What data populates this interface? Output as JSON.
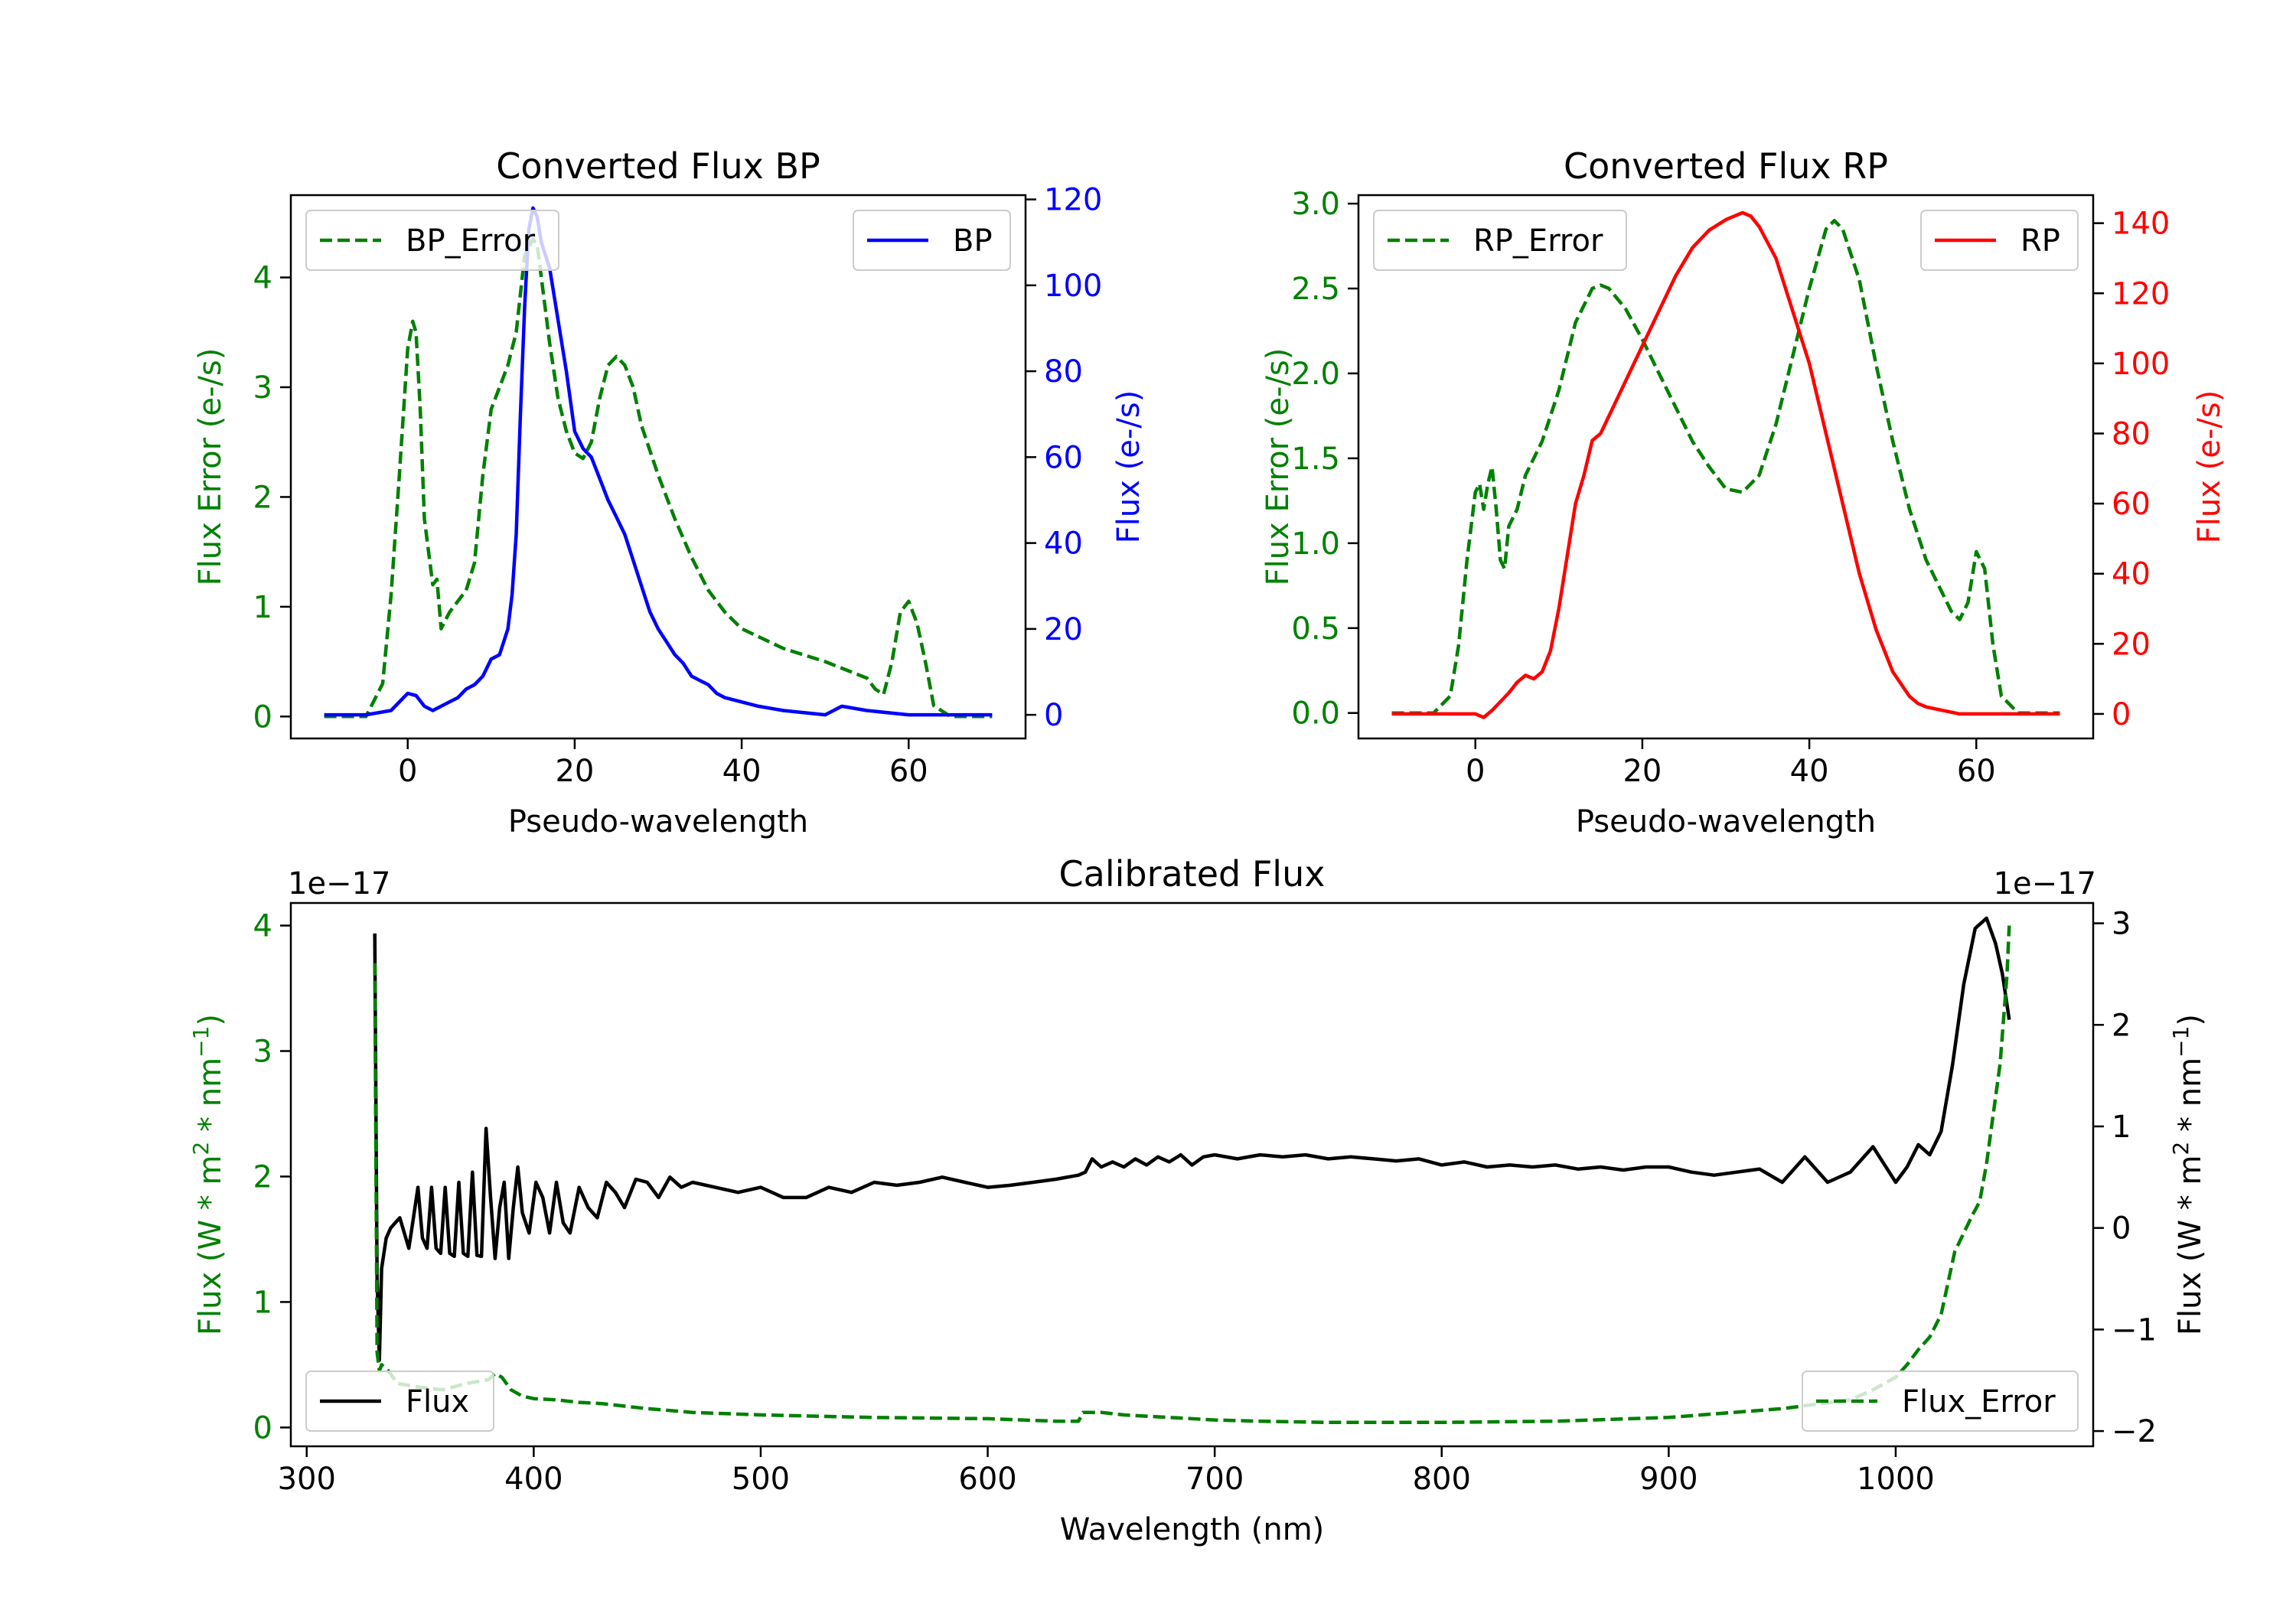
{
  "colors": {
    "green": "#008000",
    "blue": "#0000ff",
    "red": "#ff0000",
    "black": "#000000",
    "axis": "#000000",
    "legend_border": "#cccccc"
  },
  "chart_data": [
    {
      "type": "line",
      "title": "Converted Flux BP",
      "xlabel": "Pseudo-wavelength",
      "ylabel_left": "Flux Error (e-/s)",
      "ylabel_right": "Flux (e-/s)",
      "xlim": [
        -14,
        74
      ],
      "ylim_left": [
        -0.2,
        4.75
      ],
      "ylim_right": [
        -5.5,
        121
      ],
      "x_ticks": [
        0,
        20,
        40,
        60
      ],
      "x_tick_labels": [
        "0",
        "20",
        "40",
        "60"
      ],
      "y_left_ticks": [
        0,
        1,
        2,
        3,
        4
      ],
      "y_left_tick_labels": [
        "0",
        "1",
        "2",
        "3",
        "4"
      ],
      "y_right_ticks": [
        0,
        20,
        40,
        60,
        80,
        100,
        120
      ],
      "y_right_tick_labels": [
        "0",
        "20",
        "40",
        "60",
        "80",
        "100",
        "120"
      ],
      "legend_left": {
        "label": "BP_Error",
        "placement": "upper left"
      },
      "legend_right": {
        "label": "BP",
        "placement": "upper right"
      },
      "series": [
        {
          "name": "BP_Error",
          "axis": "left",
          "style": "dashed",
          "color": "green",
          "x": [
            -10,
            -5,
            -3,
            -2,
            -1,
            0,
            0.6,
            1,
            1.5,
            2,
            3,
            3.5,
            4,
            5,
            6,
            7,
            8,
            9,
            10,
            11,
            12,
            13,
            14,
            15,
            15.5,
            16,
            17,
            18,
            19,
            20,
            21,
            22,
            23,
            24,
            25,
            26,
            27,
            28,
            30,
            32,
            34,
            36,
            38,
            40,
            45,
            50,
            55,
            56,
            57,
            58,
            59,
            60,
            61,
            62,
            63,
            65,
            70
          ],
          "values": [
            0,
            0,
            0.3,
            1.1,
            2.2,
            3.35,
            3.6,
            3.5,
            2.8,
            1.8,
            1.2,
            1.25,
            0.8,
            0.95,
            1.05,
            1.15,
            1.4,
            2.2,
            2.8,
            3.0,
            3.2,
            3.5,
            4.2,
            4.35,
            4.3,
            4.0,
            3.4,
            2.9,
            2.6,
            2.4,
            2.35,
            2.5,
            2.9,
            3.2,
            3.28,
            3.2,
            3.0,
            2.65,
            2.2,
            1.8,
            1.45,
            1.15,
            0.95,
            0.8,
            0.62,
            0.5,
            0.35,
            0.25,
            0.2,
            0.5,
            0.95,
            1.05,
            0.85,
            0.5,
            0.1,
            0,
            0
          ]
        },
        {
          "name": "BP",
          "axis": "right",
          "style": "solid",
          "color": "blue",
          "x": [
            -10,
            -5,
            -2,
            0,
            1,
            2,
            3,
            4,
            5,
            6,
            7,
            8,
            9,
            10,
            11,
            12,
            12.5,
            13,
            13.5,
            14,
            14.5,
            15,
            15.5,
            16,
            17,
            18,
            19,
            20,
            21,
            22,
            23,
            24,
            25,
            26,
            27,
            28,
            29,
            30,
            31,
            32,
            33,
            34,
            35,
            36,
            37,
            38,
            40,
            42,
            45,
            50,
            52,
            55,
            60,
            65,
            70
          ],
          "values": [
            0,
            0,
            1,
            5,
            4.5,
            2,
            1,
            2,
            3,
            4,
            6,
            7,
            9,
            13,
            14,
            20,
            28,
            42,
            70,
            95,
            113,
            118,
            116,
            110,
            104,
            92,
            80,
            66,
            62,
            60,
            55,
            50,
            46,
            42,
            36,
            30,
            24,
            20,
            17,
            14,
            12,
            9,
            8,
            7,
            5,
            4,
            3,
            2,
            1,
            0,
            2,
            1,
            0,
            0,
            0
          ]
        }
      ]
    },
    {
      "type": "line",
      "title": "Converted Flux RP",
      "xlabel": "Pseudo-wavelength",
      "ylabel_left": "Flux Error (e-/s)",
      "ylabel_right": "Flux (e-/s)",
      "xlim": [
        -14,
        74
      ],
      "ylim_left": [
        -0.15,
        3.05
      ],
      "ylim_right": [
        -7,
        148
      ],
      "x_ticks": [
        0,
        20,
        40,
        60
      ],
      "x_tick_labels": [
        "0",
        "20",
        "40",
        "60"
      ],
      "y_left_ticks": [
        0,
        0.5,
        1.0,
        1.5,
        2.0,
        2.5,
        3.0
      ],
      "y_left_tick_labels": [
        "0.0",
        "0.5",
        "1.0",
        "1.5",
        "2.0",
        "2.5",
        "3.0"
      ],
      "y_right_ticks": [
        0,
        20,
        40,
        60,
        80,
        100,
        120,
        140
      ],
      "y_right_tick_labels": [
        "0",
        "20",
        "40",
        "60",
        "80",
        "100",
        "120",
        "140"
      ],
      "legend_left": {
        "label": "RP_Error",
        "placement": "upper left"
      },
      "legend_right": {
        "label": "RP",
        "placement": "upper right"
      },
      "series": [
        {
          "name": "RP_Error",
          "axis": "left",
          "style": "dashed",
          "color": "green",
          "x": [
            -10,
            -5,
            -3,
            -2,
            -1,
            0,
            0.5,
            1,
            1.5,
            2,
            2.5,
            3,
            3.5,
            4,
            5,
            6,
            8,
            10,
            12,
            14,
            15,
            16,
            18,
            20,
            22,
            24,
            26,
            28,
            30,
            32,
            34,
            36,
            38,
            40,
            42,
            43,
            44,
            46,
            48,
            50,
            52,
            54,
            56,
            57,
            58,
            59,
            60,
            61,
            62,
            63,
            65,
            70
          ],
          "values": [
            0,
            0,
            0.1,
            0.4,
            0.9,
            1.3,
            1.35,
            1.2,
            1.35,
            1.45,
            1.2,
            0.9,
            0.85,
            1.1,
            1.2,
            1.4,
            1.6,
            1.9,
            2.3,
            2.5,
            2.52,
            2.5,
            2.38,
            2.2,
            2.0,
            1.8,
            1.6,
            1.45,
            1.32,
            1.3,
            1.4,
            1.7,
            2.1,
            2.5,
            2.85,
            2.9,
            2.85,
            2.55,
            2.05,
            1.6,
            1.2,
            0.9,
            0.7,
            0.6,
            0.55,
            0.65,
            0.95,
            0.85,
            0.4,
            0.1,
            0,
            0
          ]
        },
        {
          "name": "RP",
          "axis": "right",
          "style": "solid",
          "color": "red",
          "x": [
            -10,
            -5,
            0,
            1,
            2,
            4,
            5,
            6,
            7,
            8,
            9,
            10,
            11,
            12,
            13,
            14,
            15,
            16,
            18,
            20,
            22,
            24,
            26,
            28,
            30,
            32,
            33,
            34,
            36,
            38,
            40,
            42,
            44,
            46,
            48,
            50,
            52,
            53,
            54,
            56,
            58,
            60,
            62,
            65,
            70
          ],
          "values": [
            0,
            0,
            0,
            -1,
            1,
            6,
            9,
            11,
            10,
            12,
            18,
            30,
            45,
            60,
            68,
            78,
            80,
            85,
            95,
            105,
            115,
            125,
            133,
            138,
            141,
            143,
            142,
            139,
            130,
            115,
            100,
            80,
            60,
            40,
            24,
            12,
            5,
            3,
            2,
            1,
            0,
            0,
            0,
            0,
            0
          ]
        }
      ]
    },
    {
      "type": "line",
      "title": "Calibrated Flux",
      "xlabel": "Wavelength (nm)",
      "ylabel_left": "Flux (W * m$^2$ * nm$^{-1}$)",
      "ylabel_right": "Flux (W * m$^2$ * nm$^{-1}$)",
      "ylabel_text": "Flux (W * m",
      "ylabel_sup1": "2",
      "ylabel_mid": " * nm",
      "ylabel_sup2": "−1",
      "ylabel_end": ")",
      "offset_left": "1e−17",
      "offset_right": "1e−17",
      "xlim": [
        293,
        1087
      ],
      "ylim_left": [
        -0.15,
        4.18
      ],
      "ylim_right": [
        -2.15,
        3.2
      ],
      "x_ticks": [
        300,
        400,
        500,
        600,
        700,
        800,
        900,
        1000
      ],
      "x_tick_labels": [
        "300",
        "400",
        "500",
        "600",
        "700",
        "800",
        "900",
        "1000"
      ],
      "y_left_ticks": [
        0,
        1,
        2,
        3,
        4
      ],
      "y_left_tick_labels": [
        "0",
        "1",
        "2",
        "3",
        "4"
      ],
      "y_right_ticks": [
        -2,
        -1,
        0,
        1,
        2,
        3
      ],
      "y_right_tick_labels": [
        "−2",
        "−1",
        "0",
        "1",
        "2",
        "3"
      ],
      "legend_left": {
        "label": "Flux",
        "placement": "lower left"
      },
      "legend_right": {
        "label": "Flux_Error",
        "placement": "lower right"
      },
      "series": [
        {
          "name": "Flux",
          "axis": "right",
          "style": "solid",
          "color": "black",
          "x": [
            330,
            331,
            332,
            333,
            335,
            337,
            339,
            341,
            343,
            345,
            347,
            349,
            351,
            353,
            355,
            357,
            359,
            361,
            363,
            365,
            367,
            369,
            371,
            373,
            375,
            377,
            379,
            381,
            383,
            385,
            387,
            389,
            391,
            393,
            395,
            398,
            401,
            404,
            407,
            410,
            413,
            416,
            420,
            424,
            428,
            432,
            436,
            440,
            445,
            450,
            455,
            460,
            465,
            470,
            480,
            490,
            500,
            510,
            520,
            530,
            540,
            550,
            560,
            570,
            580,
            590,
            600,
            610,
            620,
            630,
            640,
            643,
            646,
            650,
            655,
            660,
            665,
            670,
            675,
            680,
            685,
            690,
            695,
            700,
            710,
            720,
            730,
            740,
            750,
            760,
            770,
            780,
            790,
            800,
            810,
            820,
            830,
            840,
            850,
            860,
            870,
            880,
            890,
            900,
            910,
            920,
            930,
            940,
            950,
            960,
            970,
            980,
            990,
            1000,
            1005,
            1010,
            1015,
            1020,
            1025,
            1030,
            1035,
            1040,
            1044,
            1047,
            1050
          ],
          "values": [
            2.9,
            -0.5,
            -1.3,
            -0.4,
            -0.1,
            0.0,
            0.05,
            0.1,
            -0.05,
            -0.2,
            0.1,
            0.4,
            -0.1,
            -0.2,
            0.4,
            -0.2,
            -0.25,
            0.4,
            -0.25,
            -0.28,
            0.45,
            -0.25,
            -0.28,
            0.55,
            -0.27,
            -0.28,
            0.98,
            0.3,
            -0.3,
            0.2,
            0.45,
            -0.3,
            0.2,
            0.6,
            0.15,
            -0.05,
            0.45,
            0.3,
            -0.05,
            0.45,
            0.05,
            -0.05,
            0.4,
            0.2,
            0.1,
            0.45,
            0.35,
            0.2,
            0.48,
            0.45,
            0.3,
            0.5,
            0.4,
            0.45,
            0.4,
            0.35,
            0.4,
            0.3,
            0.3,
            0.4,
            0.35,
            0.45,
            0.42,
            0.45,
            0.5,
            0.45,
            0.4,
            0.42,
            0.45,
            0.48,
            0.52,
            0.55,
            0.68,
            0.6,
            0.65,
            0.6,
            0.68,
            0.62,
            0.7,
            0.65,
            0.72,
            0.62,
            0.7,
            0.72,
            0.68,
            0.72,
            0.7,
            0.72,
            0.68,
            0.7,
            0.68,
            0.66,
            0.68,
            0.62,
            0.65,
            0.6,
            0.62,
            0.6,
            0.62,
            0.58,
            0.6,
            0.57,
            0.6,
            0.6,
            0.55,
            0.52,
            0.55,
            0.58,
            0.45,
            0.7,
            0.45,
            0.55,
            0.8,
            0.45,
            0.6,
            0.82,
            0.72,
            0.95,
            1.6,
            2.4,
            2.95,
            3.05,
            2.8,
            2.5,
            2.05
          ]
        },
        {
          "name": "Flux_Error",
          "axis": "left",
          "style": "dashed",
          "color": "green",
          "x": [
            330,
            331,
            332,
            333,
            336,
            340,
            350,
            360,
            370,
            380,
            383,
            386,
            390,
            395,
            400,
            410,
            420,
            430,
            440,
            450,
            470,
            500,
            550,
            600,
            630,
            640,
            642,
            645,
            650,
            660,
            680,
            700,
            720,
            750,
            800,
            850,
            900,
            950,
            980,
            990,
            1000,
            1005,
            1010,
            1015,
            1020,
            1023,
            1026,
            1030,
            1034,
            1037,
            1040,
            1043,
            1046,
            1049,
            1050
          ],
          "values": [
            3.7,
            0.6,
            0.45,
            0.5,
            0.45,
            0.35,
            0.32,
            0.3,
            0.35,
            0.38,
            0.43,
            0.4,
            0.3,
            0.25,
            0.23,
            0.22,
            0.2,
            0.19,
            0.17,
            0.15,
            0.12,
            0.1,
            0.08,
            0.07,
            0.05,
            0.05,
            0.12,
            0.12,
            0.12,
            0.1,
            0.08,
            0.06,
            0.05,
            0.04,
            0.04,
            0.05,
            0.08,
            0.15,
            0.22,
            0.3,
            0.4,
            0.5,
            0.62,
            0.72,
            0.9,
            1.15,
            1.4,
            1.55,
            1.7,
            1.8,
            2.1,
            2.5,
            2.9,
            3.6,
            4.0
          ]
        }
      ]
    }
  ]
}
